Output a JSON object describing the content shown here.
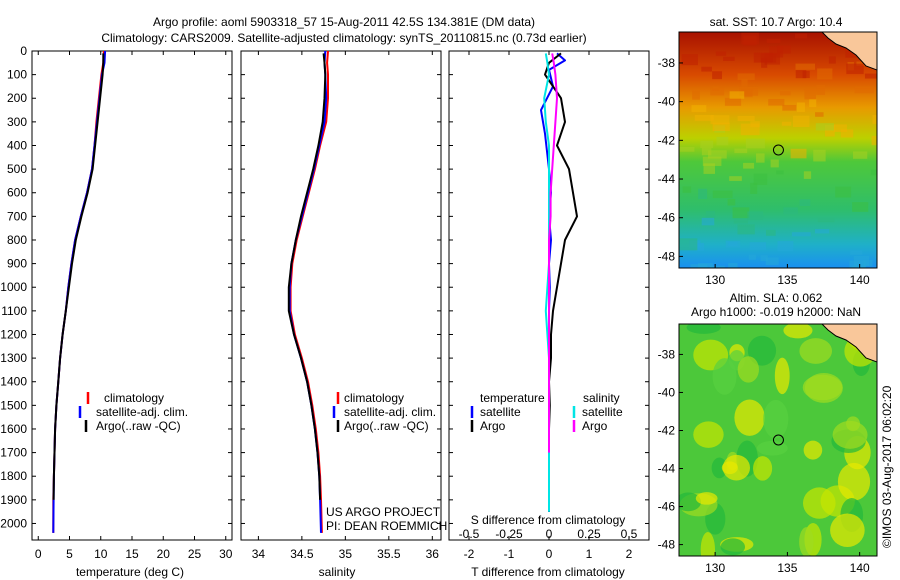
{
  "title": {
    "line1": "Argo profile: aoml 5903318_57 15-Aug-2011 42.5S 134.381E (DM data)",
    "line2": "Climatology: CARS2009. Satellite-adjusted climatology: synTS_20110815.nc (0.73d earlier)"
  },
  "colors": {
    "climatology": "#ff0000",
    "satellite_temp": "#0000ff",
    "argo": "#000000",
    "satellite_sal": "#00e5e5",
    "argo_sal": "#ff00ff"
  },
  "credits": {
    "project": "US ARGO PROJECT",
    "pi": "PI: DEAN ROEMMICH",
    "imos": "©IMOS 03-Aug-2017 06:02:20"
  },
  "chart_data": [
    {
      "type": "line",
      "panel": "temperature",
      "xlabel": "temperature (deg C)",
      "xlim": [
        -1,
        31
      ],
      "xticks": [
        0,
        5,
        10,
        15,
        20,
        25,
        30
      ],
      "ylim": [
        2070,
        0
      ],
      "yticks": [
        0,
        100,
        200,
        300,
        400,
        500,
        600,
        700,
        800,
        900,
        1000,
        1100,
        1200,
        1300,
        1400,
        1500,
        1600,
        1700,
        1800,
        1900,
        2000
      ],
      "legend": [
        "climatology",
        "satellite-adj. clim.",
        "Argo(..raw -QC)"
      ],
      "legend_placement": "lower-center",
      "series": [
        {
          "name": "climatology",
          "color": "#ff0000",
          "x": [
            10.5,
            10.4,
            10.1,
            9.7,
            9.3,
            9.0,
            8.6,
            7.8,
            6.8,
            5.9,
            5.3,
            4.8,
            4.4,
            3.9,
            3.5,
            3.2,
            2.9,
            2.7,
            2.6,
            2.5,
            2.4,
            2.4
          ],
          "y": [
            0,
            50,
            100,
            200,
            300,
            400,
            500,
            600,
            700,
            800,
            900,
            1000,
            1100,
            1200,
            1300,
            1400,
            1500,
            1600,
            1700,
            1800,
            1900,
            2040
          ]
        },
        {
          "name": "satellite-adj. clim.",
          "color": "#0000ff",
          "x": [
            10.7,
            10.6,
            10.2,
            9.8,
            9.4,
            9.0,
            8.6,
            7.8,
            6.8,
            5.9,
            5.3,
            4.8,
            4.4,
            3.9,
            3.5,
            3.2,
            2.9,
            2.7,
            2.6,
            2.5,
            2.45,
            2.4
          ],
          "y": [
            0,
            50,
            100,
            200,
            300,
            400,
            500,
            600,
            700,
            800,
            900,
            1000,
            1100,
            1200,
            1300,
            1400,
            1500,
            1600,
            1700,
            1800,
            1900,
            2040
          ]
        },
        {
          "name": "Argo(..raw -QC)",
          "color": "#000000",
          "x": [
            10.4,
            10.4,
            10.3,
            9.9,
            9.5,
            9.1,
            8.7,
            7.9,
            6.9,
            6.0,
            5.4,
            4.9,
            4.4,
            3.9,
            3.5,
            3.2,
            2.9,
            2.7,
            2.6,
            2.5,
            2.45
          ],
          "y": [
            10,
            50,
            100,
            200,
            300,
            400,
            500,
            600,
            700,
            800,
            900,
            1000,
            1100,
            1200,
            1300,
            1400,
            1500,
            1600,
            1700,
            1800,
            1900
          ]
        }
      ]
    },
    {
      "type": "line",
      "panel": "salinity",
      "xlabel": "salinity",
      "xlim": [
        33.8,
        36.1
      ],
      "xticks": [
        34,
        34.5,
        35,
        35.5,
        36
      ],
      "ylim": [
        2070,
        0
      ],
      "legend": [
        "climatology",
        "satellite-adj. clim.",
        "Argo(..raw -QC)"
      ],
      "legend_placement": "lower-center",
      "series": [
        {
          "name": "climatology",
          "color": "#ff0000",
          "x": [
            34.8,
            34.79,
            34.8,
            34.8,
            34.78,
            34.71,
            34.65,
            34.58,
            34.51,
            34.44,
            34.39,
            34.37,
            34.37,
            34.42,
            34.5,
            34.57,
            34.62,
            34.66,
            34.69,
            34.71,
            34.72,
            34.73
          ],
          "y": [
            0,
            50,
            100,
            200,
            300,
            400,
            500,
            600,
            700,
            800,
            900,
            1000,
            1100,
            1200,
            1300,
            1400,
            1500,
            1600,
            1700,
            1800,
            1900,
            2040
          ]
        },
        {
          "name": "satellite-adj. clim.",
          "color": "#0000ff",
          "x": [
            34.77,
            34.76,
            34.77,
            34.78,
            34.76,
            34.7,
            34.64,
            34.57,
            34.5,
            34.43,
            34.38,
            34.36,
            34.36,
            34.41,
            34.49,
            34.56,
            34.61,
            34.65,
            34.68,
            34.7,
            34.71,
            34.72
          ],
          "y": [
            0,
            50,
            100,
            200,
            300,
            400,
            500,
            600,
            700,
            800,
            900,
            1000,
            1100,
            1200,
            1300,
            1400,
            1500,
            1600,
            1700,
            1800,
            1900,
            2040
          ]
        },
        {
          "name": "Argo(..raw -QC)",
          "color": "#000000",
          "x": [
            34.75,
            34.76,
            34.77,
            34.76,
            34.74,
            34.69,
            34.63,
            34.56,
            34.49,
            34.43,
            34.38,
            34.35,
            34.35,
            34.41,
            34.49,
            34.56,
            34.61,
            34.65,
            34.68,
            34.7,
            34.71
          ],
          "y": [
            10,
            50,
            100,
            200,
            300,
            400,
            500,
            600,
            700,
            800,
            900,
            1000,
            1100,
            1200,
            1300,
            1400,
            1500,
            1600,
            1700,
            1800,
            1900
          ]
        }
      ]
    },
    {
      "type": "line",
      "panel": "difference",
      "xlabel": "T difference from climatology",
      "xlabel2": "S difference from climatology",
      "xlim": [
        -2.5,
        2.5
      ],
      "xticks": [
        -2,
        -1,
        0,
        1,
        2
      ],
      "xticks_s": [
        -0.5,
        -0.25,
        0,
        0.25,
        0.5
      ],
      "xticks_s_labels": [
        "-0.5",
        "-0.25",
        "0",
        "0.25",
        "0.5"
      ],
      "ylim": [
        2070,
        0
      ],
      "legend_headers": [
        "temperature",
        "salinity"
      ],
      "legend_placement": "lower-center",
      "series": [
        {
          "name": "satellite",
          "group": "temperature",
          "color": "#0000ff",
          "x": [
            0.2,
            0.4,
            0.0,
            0.1,
            -0.2,
            -0.1,
            0.0,
            0.05,
            0.0,
            0.05,
            0.0,
            0.02,
            0.0,
            0.0,
            0.0,
            0.0,
            0.0,
            0.0,
            0.0,
            0.0,
            0.0
          ],
          "y": [
            10,
            40,
            80,
            150,
            250,
            350,
            500,
            600,
            700,
            800,
            900,
            1000,
            1100,
            1200,
            1300,
            1400,
            1500,
            1600,
            1700,
            1800,
            1950
          ]
        },
        {
          "name": "Argo",
          "group": "temperature",
          "color": "#000000",
          "x": [
            0.3,
            0.0,
            -0.1,
            0.3,
            0.4,
            0.2,
            0.5,
            0.6,
            0.7,
            0.4,
            0.3,
            0.2,
            0.1,
            0.05,
            0.05,
            0.0,
            0.02,
            0.0,
            0.0,
            0.0,
            0.0
          ],
          "y": [
            10,
            50,
            100,
            200,
            300,
            400,
            500,
            600,
            700,
            800,
            900,
            1000,
            1100,
            1200,
            1300,
            1400,
            1500,
            1600,
            1700,
            1800,
            1950
          ]
        },
        {
          "name": "satellite",
          "group": "salinity",
          "color": "#00e5e5",
          "x": [
            -0.02,
            -0.01,
            0.0,
            -0.03,
            -0.02,
            0.0,
            0.0,
            0.0,
            0.0,
            0.0,
            0.0,
            -0.01,
            -0.02,
            -0.01,
            0.0,
            0.0,
            0.0,
            0.0,
            0.0,
            0.0,
            0.0
          ],
          "y": [
            10,
            50,
            100,
            200,
            300,
            400,
            500,
            600,
            700,
            800,
            900,
            1000,
            1100,
            1200,
            1300,
            1400,
            1500,
            1600,
            1700,
            1800,
            1950
          ]
        },
        {
          "name": "Argo",
          "group": "salinity",
          "color": "#ff00ff",
          "x": [
            0.02,
            0.03,
            0.04,
            0.05,
            0.04,
            0.03,
            0.02,
            0.01,
            0.01,
            0.0,
            0.0,
            0.0,
            0.0,
            0.0,
            0.0,
            0.0,
            0.0,
            0.0,
            0.0
          ],
          "y": [
            10,
            50,
            100,
            200,
            300,
            400,
            500,
            600,
            700,
            800,
            900,
            1000,
            1100,
            1200,
            1300,
            1400,
            1500,
            1600,
            1700
          ]
        }
      ]
    },
    {
      "type": "heatmap",
      "panel": "sst-map",
      "title": "sat. SST: 10.7  Argo: 10.4",
      "xlim": [
        127.5,
        141.2
      ],
      "ylim": [
        -48.6,
        -36.4
      ],
      "xticks": [
        130,
        135,
        140
      ],
      "yticks": [
        -38,
        -40,
        -42,
        -44,
        -46,
        -48
      ],
      "marker": {
        "lon": 134.381,
        "lat": -42.5
      },
      "colormap": "jet"
    },
    {
      "type": "heatmap",
      "panel": "sla-map",
      "title": "Altim. SLA: 0.062",
      "title2": "Argo h1000: -0.019 h2000: NaN",
      "xlim": [
        127.5,
        141.2
      ],
      "ylim": [
        -48.6,
        -36.4
      ],
      "xticks": [
        130,
        135,
        140
      ],
      "yticks": [
        -38,
        -40,
        -42,
        -44,
        -46,
        -48
      ],
      "marker": {
        "lon": 134.381,
        "lat": -42.5
      },
      "colormap": "jet"
    }
  ]
}
